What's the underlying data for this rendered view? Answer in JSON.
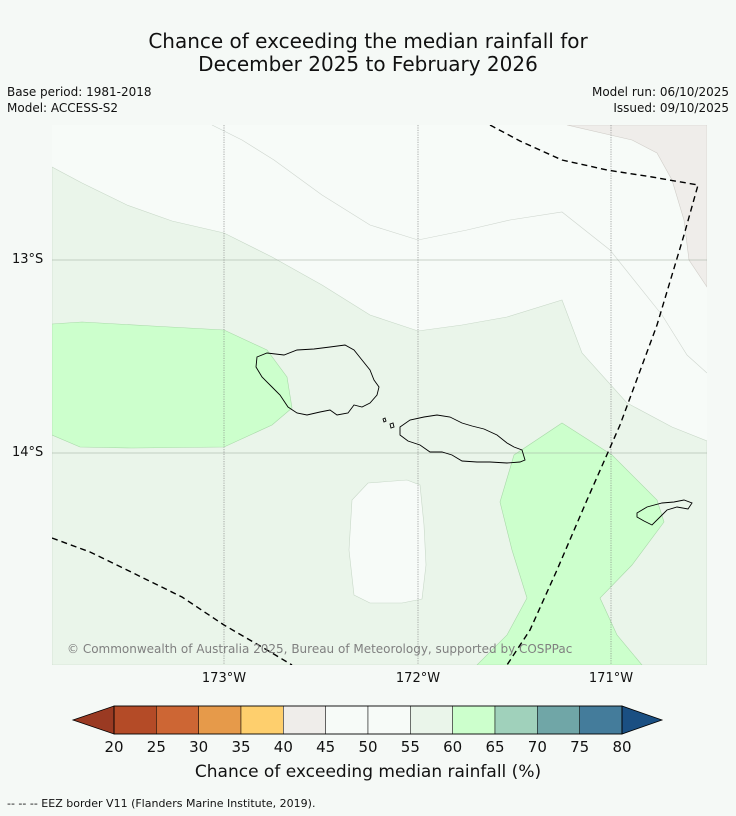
{
  "title": {
    "line1": "Chance of exceeding the median rainfall for",
    "line2": "December 2025 to February 2026"
  },
  "meta": {
    "base_period": "Base period: 1981-2018",
    "model": "Model: ACCESS-S2",
    "model_run": "Model run: 06/10/2025",
    "issued": "Issued: 09/10/2025"
  },
  "map": {
    "copyright": "© Commonwealth of Australia 2025, Bureau of Meteorology, supported by COSPPac",
    "lat_labels": [
      "13°S",
      "14°S"
    ],
    "lon_labels": [
      "173°W",
      "172°W",
      "171°W"
    ]
  },
  "colorbar": {
    "label": "Chance of exceeding median rainfall (%)",
    "ticks": [
      "20",
      "25",
      "30",
      "35",
      "40",
      "45",
      "50",
      "55",
      "60",
      "65",
      "70",
      "75",
      "80"
    ],
    "colors": {
      "lt20": "#9a3a22",
      "20-25": "#b44b27",
      "25-30": "#cd6634",
      "30-35": "#e69a4a",
      "35-40": "#fecf6d",
      "40-45": "#efedea",
      "45-50": "#f7fbf8",
      "50-55": "#f7fbf8",
      "55-60": "#eaf5ea",
      "60-65": "#ccffcc",
      "65-70": "#a0d1bb",
      "70-75": "#70a6a7",
      "75-80": "#447c9b",
      "gt80": "#1a4f82"
    }
  },
  "legend": {
    "eez": "--  --  -- EEZ border V11 (Flanders Marine Institute, 2019)."
  }
}
